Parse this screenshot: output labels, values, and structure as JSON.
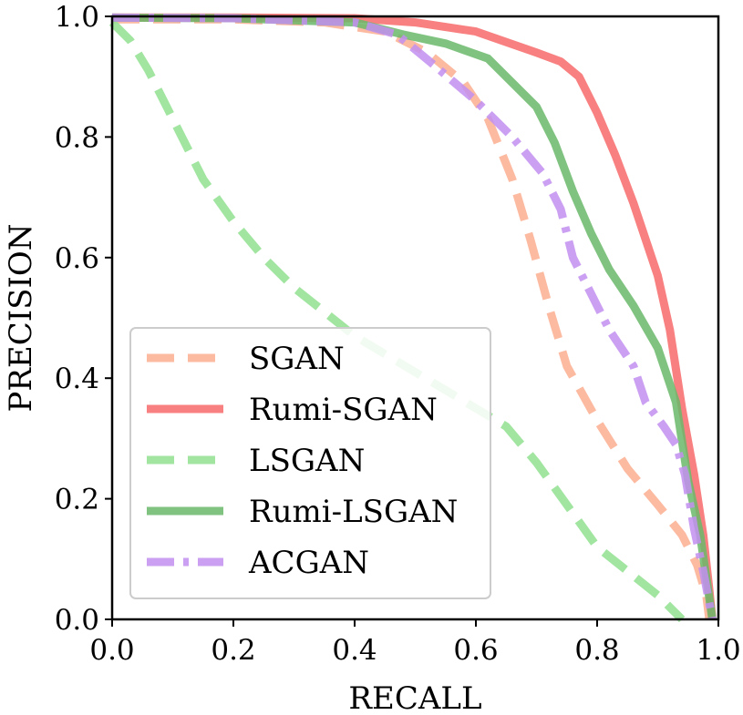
{
  "chart_data": {
    "type": "line",
    "title": "",
    "xlabel": "RECALL",
    "ylabel": "PRECISION",
    "xlim": [
      0.0,
      1.0
    ],
    "ylim": [
      0.0,
      1.0
    ],
    "xticks": [
      "0.0",
      "0.2",
      "0.4",
      "0.6",
      "0.8",
      "1.0"
    ],
    "yticks": [
      "0.0",
      "0.2",
      "0.4",
      "0.6",
      "0.8",
      "1.0"
    ],
    "grid": false,
    "legend_position": "lower-left",
    "series": [
      {
        "name": "SGAN",
        "color": "#fcae91",
        "style": "dashed",
        "points": [
          [
            0.0,
            0.995
          ],
          [
            0.2,
            0.995
          ],
          [
            0.35,
            0.99
          ],
          [
            0.45,
            0.975
          ],
          [
            0.52,
            0.94
          ],
          [
            0.58,
            0.89
          ],
          [
            0.62,
            0.83
          ],
          [
            0.66,
            0.73
          ],
          [
            0.69,
            0.63
          ],
          [
            0.72,
            0.52
          ],
          [
            0.75,
            0.42
          ],
          [
            0.8,
            0.33
          ],
          [
            0.85,
            0.25
          ],
          [
            0.9,
            0.19
          ],
          [
            0.94,
            0.14
          ],
          [
            0.965,
            0.09
          ],
          [
            0.98,
            0.04
          ],
          [
            0.985,
            0.0
          ]
        ]
      },
      {
        "name": "Rumi-SGAN",
        "color": "#f76a6a",
        "style": "solid",
        "points": [
          [
            0.0,
            0.998
          ],
          [
            0.2,
            0.998
          ],
          [
            0.4,
            0.997
          ],
          [
            0.5,
            0.99
          ],
          [
            0.6,
            0.975
          ],
          [
            0.7,
            0.94
          ],
          [
            0.74,
            0.925
          ],
          [
            0.77,
            0.9
          ],
          [
            0.8,
            0.84
          ],
          [
            0.83,
            0.77
          ],
          [
            0.86,
            0.69
          ],
          [
            0.88,
            0.63
          ],
          [
            0.9,
            0.57
          ],
          [
            0.92,
            0.48
          ],
          [
            0.94,
            0.35
          ],
          [
            0.96,
            0.24
          ],
          [
            0.975,
            0.14
          ],
          [
            0.985,
            0.05
          ],
          [
            0.99,
            0.0
          ]
        ]
      },
      {
        "name": "LSGAN",
        "color": "#90e090",
        "style": "dashed",
        "points": [
          [
            0.0,
            0.99
          ],
          [
            0.03,
            0.96
          ],
          [
            0.06,
            0.91
          ],
          [
            0.1,
            0.83
          ],
          [
            0.15,
            0.73
          ],
          [
            0.2,
            0.66
          ],
          [
            0.25,
            0.6
          ],
          [
            0.3,
            0.55
          ],
          [
            0.35,
            0.51
          ],
          [
            0.4,
            0.47
          ],
          [
            0.45,
            0.44
          ],
          [
            0.5,
            0.41
          ],
          [
            0.55,
            0.38
          ],
          [
            0.6,
            0.35
          ],
          [
            0.65,
            0.32
          ],
          [
            0.7,
            0.26
          ],
          [
            0.75,
            0.19
          ],
          [
            0.8,
            0.12
          ],
          [
            0.85,
            0.08
          ],
          [
            0.9,
            0.04
          ],
          [
            0.93,
            0.01
          ],
          [
            0.94,
            0.0
          ]
        ]
      },
      {
        "name": "Rumi-LSGAN",
        "color": "#6ab86a",
        "style": "solid",
        "points": [
          [
            0.0,
            0.998
          ],
          [
            0.2,
            0.997
          ],
          [
            0.4,
            0.99
          ],
          [
            0.48,
            0.97
          ],
          [
            0.55,
            0.955
          ],
          [
            0.62,
            0.93
          ],
          [
            0.66,
            0.89
          ],
          [
            0.7,
            0.85
          ],
          [
            0.73,
            0.79
          ],
          [
            0.76,
            0.71
          ],
          [
            0.79,
            0.64
          ],
          [
            0.82,
            0.58
          ],
          [
            0.86,
            0.52
          ],
          [
            0.9,
            0.45
          ],
          [
            0.93,
            0.36
          ],
          [
            0.95,
            0.23
          ],
          [
            0.97,
            0.14
          ],
          [
            0.98,
            0.07
          ],
          [
            0.99,
            0.0
          ]
        ]
      },
      {
        "name": "ACGAN",
        "color": "#c28ff0",
        "style": "dashdot",
        "points": [
          [
            0.0,
            0.998
          ],
          [
            0.2,
            0.997
          ],
          [
            0.4,
            0.99
          ],
          [
            0.47,
            0.97
          ],
          [
            0.53,
            0.92
          ],
          [
            0.6,
            0.86
          ],
          [
            0.66,
            0.8
          ],
          [
            0.71,
            0.74
          ],
          [
            0.74,
            0.68
          ],
          [
            0.76,
            0.6
          ],
          [
            0.79,
            0.54
          ],
          [
            0.82,
            0.48
          ],
          [
            0.86,
            0.42
          ],
          [
            0.88,
            0.36
          ],
          [
            0.91,
            0.32
          ],
          [
            0.93,
            0.29
          ],
          [
            0.945,
            0.24
          ],
          [
            0.96,
            0.15
          ],
          [
            0.975,
            0.08
          ],
          [
            0.99,
            0.0
          ]
        ]
      }
    ]
  }
}
